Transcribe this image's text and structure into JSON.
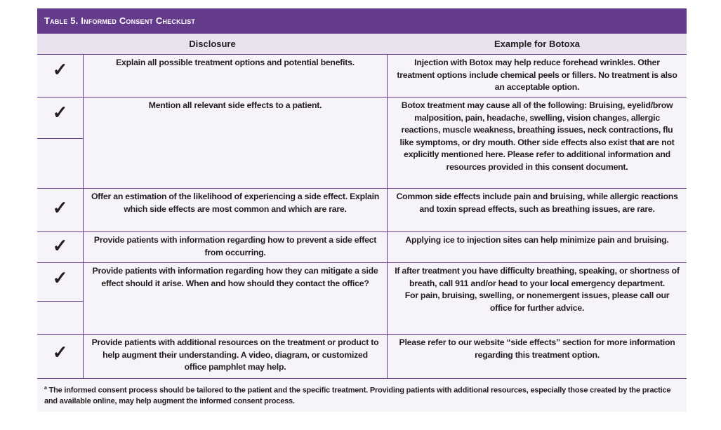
{
  "title": "Table 5. Informed Consent Checklist",
  "headers": {
    "disclosure": "Disclosure",
    "example": "Example for Botoxa"
  },
  "rows": [
    {
      "check": "✓",
      "disclosure": "Explain all possible treatment options and potential benefits.",
      "example": "Injection with Botox may help reduce forehead wrinkles. Other treatment options include chemical peels or fillers. No treatment is also an acceptable option."
    },
    {
      "check": "✓",
      "disclosure": "Mention all relevant side effects to a patient.",
      "example": "Botox treatment may cause all of the following: Bruising, eyelid/brow malposition, pain, headache, swelling, vision changes, allergic reactions, muscle weakness, breathing issues, neck contractions, flu like symptoms, or dry mouth. Other side effects also exist that are not explicitly mentioned here. Please refer to additional information and resources provided in this consent document."
    },
    {
      "check": "✓",
      "disclosure": "Offer an estimation of the likelihood of experiencing a side effect. Explain which side effects are most common and which are rare.",
      "example": "Common side effects include pain and bruising, while allergic reactions and toxin spread effects, such as breathing issues, are rare."
    },
    {
      "check": "✓",
      "disclosure": "Provide patients with information regarding how to prevent a side effect from occurring.",
      "example": "Applying ice to injection sites can help minimize pain and bruising."
    },
    {
      "check": "✓",
      "disclosure": "Provide patients with information regarding how they can mitigate a side effect should it arise. When and how should they contact the office?",
      "example": "If after treatment you have difficulty breathing, speaking, or shortness of breath, call 911 and/or head to your local emergency department.",
      "example2": "For pain, bruising, swelling, or nonemergent issues, please call our office for further advice."
    },
    {
      "check": "✓",
      "disclosure": "Provide patients with additional resources on the treatment or product to help augment their understanding. A video, diagram, or customized office pamphlet may help.",
      "example": "Please refer to our website “side effects” section for more information regarding this treatment option."
    }
  ],
  "footnote": {
    "mark": "a",
    "text": "The informed consent process should be tailored to the patient and the specific treatment. Providing patients with additional resources, especially those created by the practice and available online, may help augment the informed consent process."
  }
}
